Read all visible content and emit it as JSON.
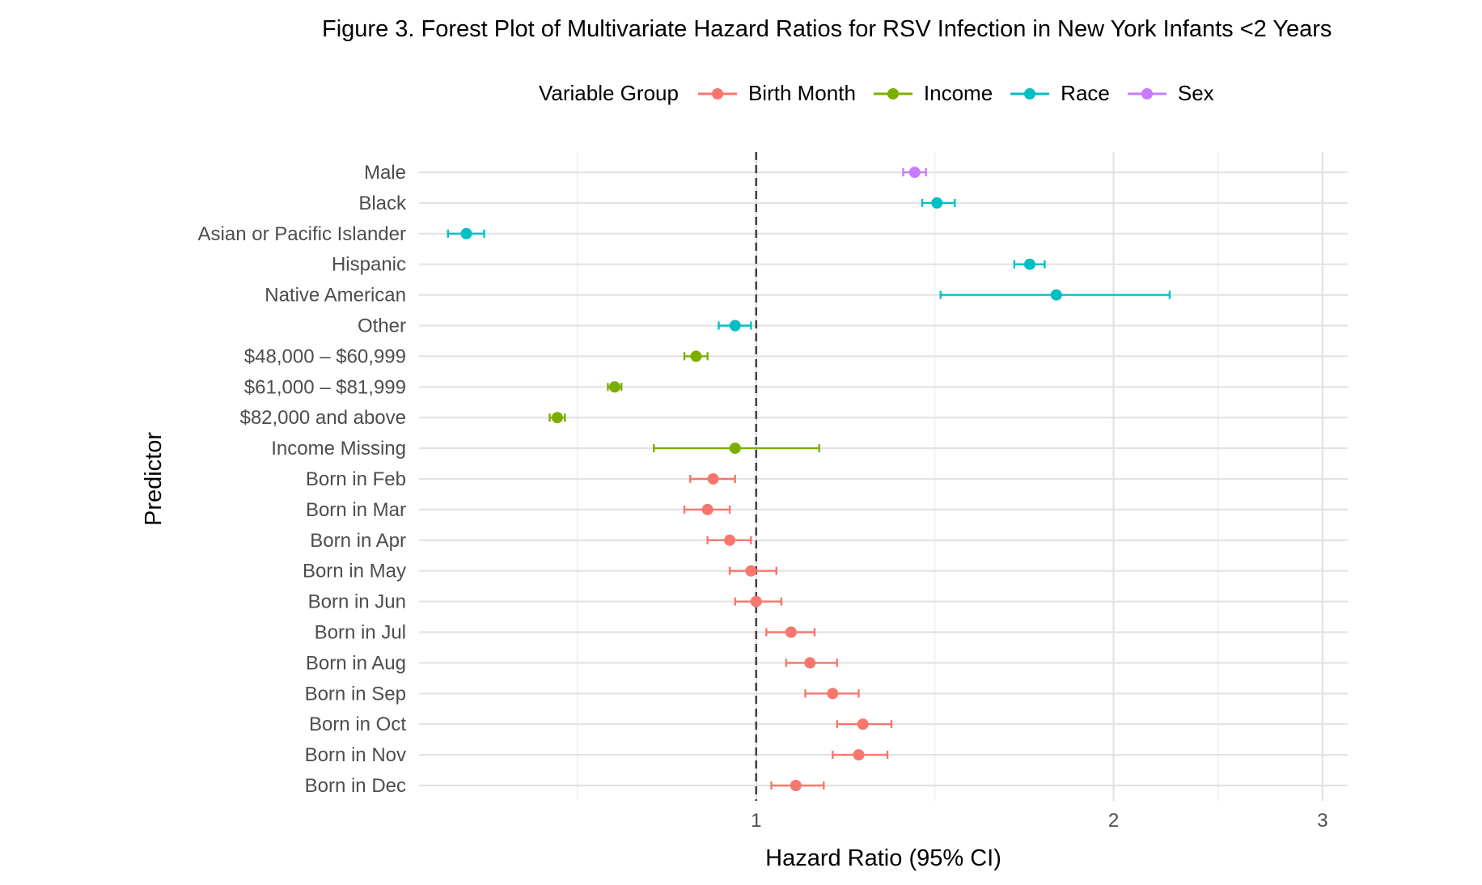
{
  "chart_data": {
    "type": "forest",
    "title": "Figure 3. Forest Plot of Multivariate Hazard Ratios for RSV Infection in New York Infants <2 Years",
    "xlabel": "Hazard Ratio (95% CI)",
    "ylabel": "Predictor",
    "x_scale": "log",
    "xlim": [
      0.52,
      3.15
    ],
    "x_ticks": [
      1,
      2,
      3
    ],
    "x_tick_labels": [
      "1",
      "2",
      "3"
    ],
    "reference_line": 1,
    "grid": true,
    "legend": {
      "title": "Variable Group",
      "position": "top",
      "entries": [
        {
          "name": "Birth Month",
          "color": "#F8766D"
        },
        {
          "name": "Income",
          "color": "#7CAE00"
        },
        {
          "name": "Race",
          "color": "#00BFC4"
        },
        {
          "name": "Sex",
          "color": "#C77CFF"
        }
      ]
    },
    "rows": [
      {
        "label": "Male",
        "group": "Sex",
        "hr": 1.36,
        "lower": 1.33,
        "upper": 1.39
      },
      {
        "label": "Black",
        "group": "Race",
        "hr": 1.42,
        "lower": 1.38,
        "upper": 1.47
      },
      {
        "label": "Asian or Pacific Islander",
        "group": "Race",
        "hr": 0.57,
        "lower": 0.55,
        "upper": 0.59
      },
      {
        "label": "Hispanic",
        "group": "Race",
        "hr": 1.7,
        "lower": 1.65,
        "upper": 1.75
      },
      {
        "label": "Native American",
        "group": "Race",
        "hr": 1.79,
        "lower": 1.43,
        "upper": 2.23
      },
      {
        "label": "Other",
        "group": "Race",
        "hr": 0.96,
        "lower": 0.93,
        "upper": 0.99
      },
      {
        "label": "$48,000 – $60,999",
        "group": "Income",
        "hr": 0.89,
        "lower": 0.87,
        "upper": 0.91
      },
      {
        "label": "$61,000 – $81,999",
        "group": "Income",
        "hr": 0.76,
        "lower": 0.75,
        "upper": 0.77
      },
      {
        "label": "$82,000 and above",
        "group": "Income",
        "hr": 0.68,
        "lower": 0.67,
        "upper": 0.69
      },
      {
        "label": "Income Missing",
        "group": "Income",
        "hr": 0.96,
        "lower": 0.82,
        "upper": 1.13
      },
      {
        "label": "Born in Feb",
        "group": "Birth Month",
        "hr": 0.92,
        "lower": 0.88,
        "upper": 0.96
      },
      {
        "label": "Born in Mar",
        "group": "Birth Month",
        "hr": 0.91,
        "lower": 0.87,
        "upper": 0.95
      },
      {
        "label": "Born in Apr",
        "group": "Birth Month",
        "hr": 0.95,
        "lower": 0.91,
        "upper": 0.99
      },
      {
        "label": "Born in May",
        "group": "Birth Month",
        "hr": 0.99,
        "lower": 0.95,
        "upper": 1.04
      },
      {
        "label": "Born in Jun",
        "group": "Birth Month",
        "hr": 1.0,
        "lower": 0.96,
        "upper": 1.05
      },
      {
        "label": "Born in Jul",
        "group": "Birth Month",
        "hr": 1.07,
        "lower": 1.02,
        "upper": 1.12
      },
      {
        "label": "Born in Aug",
        "group": "Birth Month",
        "hr": 1.11,
        "lower": 1.06,
        "upper": 1.17
      },
      {
        "label": "Born in Sep",
        "group": "Birth Month",
        "hr": 1.16,
        "lower": 1.1,
        "upper": 1.22
      },
      {
        "label": "Born in Oct",
        "group": "Birth Month",
        "hr": 1.23,
        "lower": 1.17,
        "upper": 1.3
      },
      {
        "label": "Born in Nov",
        "group": "Birth Month",
        "hr": 1.22,
        "lower": 1.16,
        "upper": 1.29
      },
      {
        "label": "Born in Dec",
        "group": "Birth Month",
        "hr": 1.08,
        "lower": 1.03,
        "upper": 1.14
      }
    ]
  }
}
